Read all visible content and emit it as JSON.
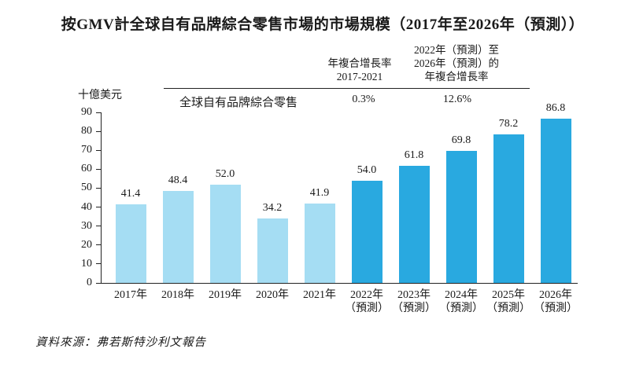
{
  "title": "按GMV計全球自有品牌綜合零售市場的市場規模（2017年至2026年（預測））",
  "unit_label": "十億美元",
  "header": {
    "col1_line1": "年複合增長率",
    "col1_line2": "2017-2021",
    "col2_line1": "2022年（預測）至",
    "col2_line2": "2026年（預測）的",
    "col2_line3": "年複合增長率",
    "legend_label": "全球自有品牌綜合零售",
    "cagr_2017_2021": "0.3%",
    "cagr_2022_2026": "12.6%"
  },
  "source": "資料來源：弗若斯特沙利文報告",
  "colors": {
    "historical": "#a5ddf3",
    "forecast": "#29a9e0",
    "axis": "#222222",
    "text": "#1a1a1a"
  },
  "chart_data": {
    "type": "bar",
    "title": "按GMV計全球自有品牌綜合零售市場的市場規模（2017年至2026年（預測））",
    "xlabel": "",
    "ylabel": "十億美元",
    "ylim": [
      0,
      90
    ],
    "ytick_interval": 10,
    "grid": false,
    "legend": [
      "全球自有品牌綜合零售"
    ],
    "legend_position": "top",
    "categories": [
      "2017年",
      "2018年",
      "2019年",
      "2020年",
      "2021年",
      "2022年（預測）",
      "2023年（預測）",
      "2024年（預測）",
      "2025年（預測）",
      "2026年（預測）"
    ],
    "xtick_lines": [
      [
        "2017年"
      ],
      [
        "2018年"
      ],
      [
        "2019年"
      ],
      [
        "2020年"
      ],
      [
        "2021年"
      ],
      [
        "2022年",
        "（預測）"
      ],
      [
        "2023年",
        "（預測）"
      ],
      [
        "2024年",
        "（預測）"
      ],
      [
        "2025年",
        "（預測）"
      ],
      [
        "2026年",
        "（預測）"
      ]
    ],
    "values": [
      41.4,
      48.4,
      52.0,
      34.2,
      41.9,
      54.0,
      61.8,
      69.8,
      78.2,
      86.8
    ],
    "bar_styles": [
      "historical",
      "historical",
      "historical",
      "historical",
      "historical",
      "forecast",
      "forecast",
      "forecast",
      "forecast",
      "forecast"
    ],
    "annotations": {
      "cagr_2017_2021": "0.3%",
      "cagr_2022_2026_forecast": "12.6%"
    }
  }
}
